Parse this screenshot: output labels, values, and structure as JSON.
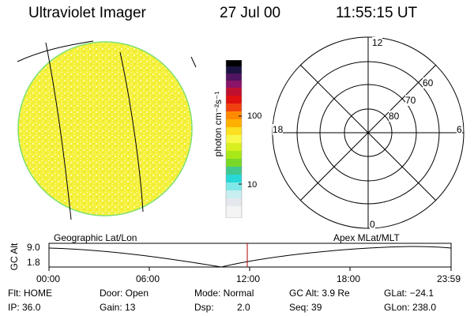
{
  "header": {
    "title": "Ultraviolet Imager",
    "date": "27 Jul 00",
    "time": "11:55:15 UT"
  },
  "colorbar": {
    "unit_label": "photon cm⁻²s⁻¹",
    "tick_100": "100",
    "tick_10": "10"
  },
  "polar_plot": {
    "label_12": "12",
    "label_18": "18",
    "label_6": "6",
    "label_0": "0",
    "label_60": "60",
    "label_70": "70",
    "label_80": "80"
  },
  "timeline": {
    "left_title": "Geographic Lat/Lon",
    "right_title": "Apex MLat/MLT",
    "y_axis_label": "GC Alt",
    "y_top": "9.0",
    "y_bottom": "1.8",
    "x_ticks": [
      "00:00",
      "06:00",
      "12:00",
      "18:00",
      "23:59"
    ]
  },
  "status": {
    "flt": "Flt: HOME",
    "door": "Door: Open",
    "mode": "Mode: Normal",
    "gc_alt": "GC Alt: 3.9 Re",
    "glat": "GLat: −24.1",
    "ip": "IP: 36.0",
    "gain": "Gain: 13",
    "dsp_label": "Dsp:",
    "dsp_value": "2.0",
    "seq": "Seq: 39",
    "glon": "GLon: 238.0"
  },
  "colors": {
    "globe_fill": "#f5f13a",
    "globe_speckle": "#fdfbb0",
    "globe_edge": "#7ee070",
    "marker": "#b00000"
  }
}
